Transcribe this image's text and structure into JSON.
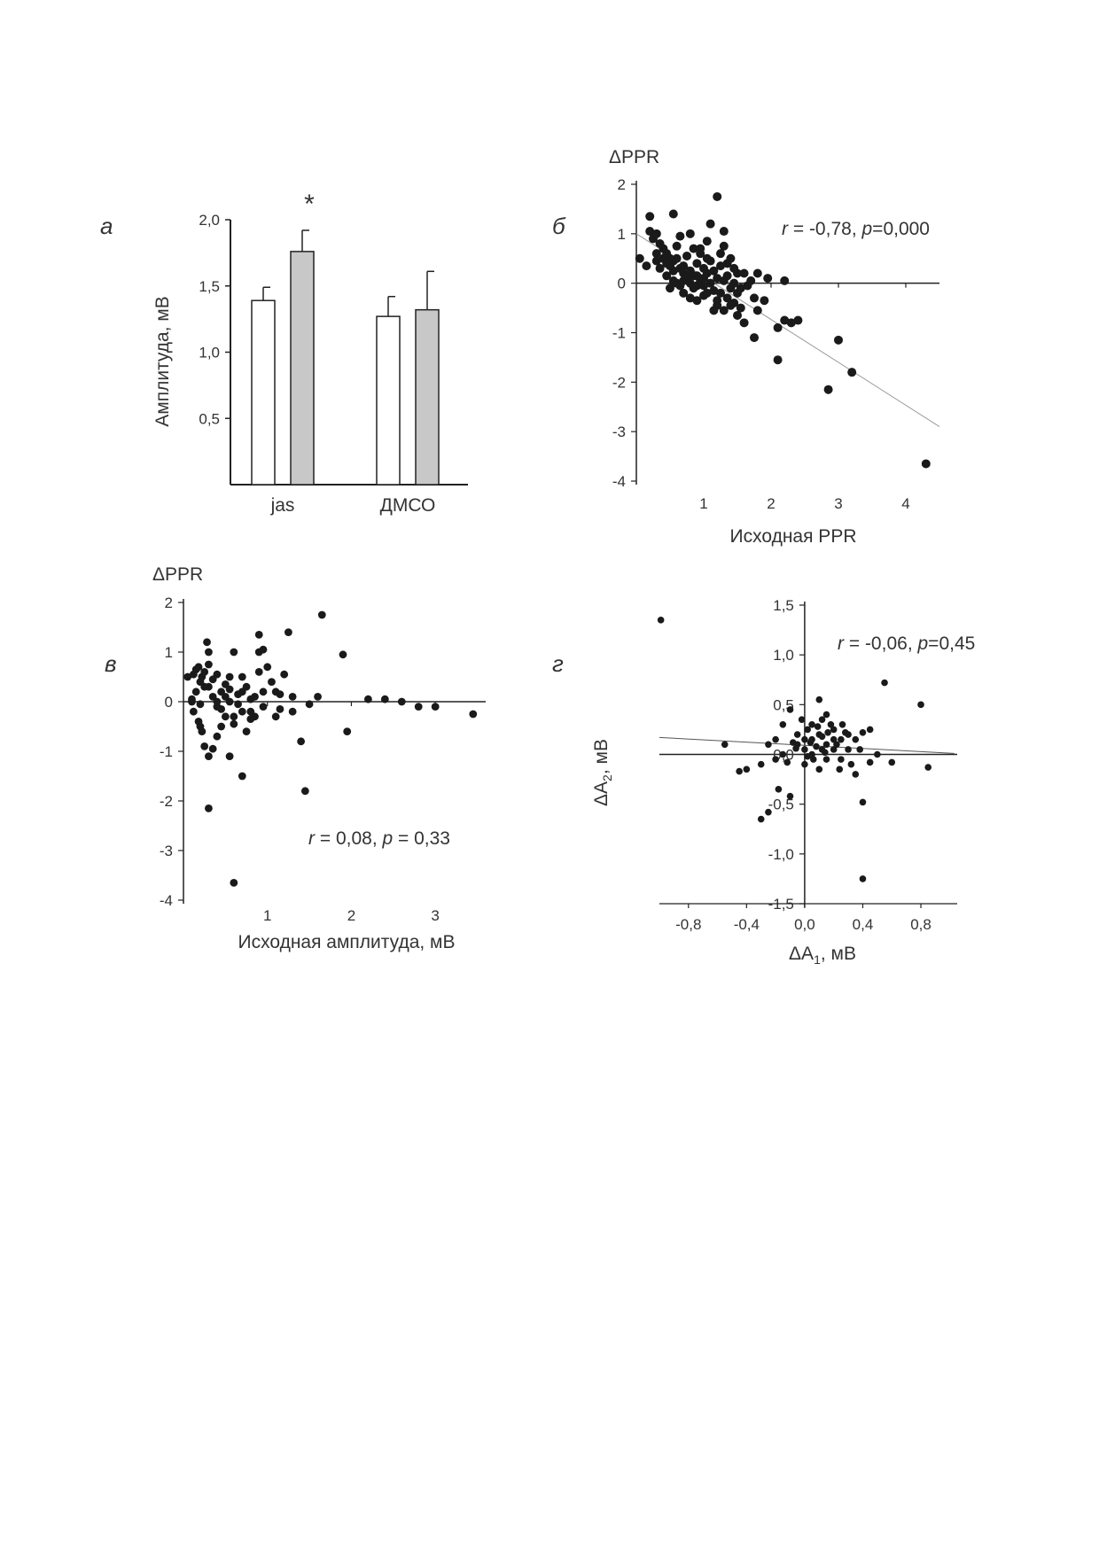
{
  "chart_data": [
    {
      "panel": "а",
      "type": "bar",
      "ylabel": "Амплитуда, мВ",
      "categories": [
        "jas",
        "ДМСО"
      ],
      "series": [
        {
          "color": "#ffffff",
          "values": [
            1.39,
            1.27
          ],
          "errors": [
            0.1,
            0.15
          ]
        },
        {
          "color": "#c8c8c8",
          "values": [
            1.76,
            1.32
          ],
          "errors": [
            0.16,
            0.29
          ]
        }
      ],
      "annotation": "*",
      "ylim": [
        0,
        2.0
      ],
      "yticks": [
        "0,5",
        "1,0",
        "1,5",
        "2,0"
      ],
      "grid": false
    },
    {
      "panel": "б",
      "type": "scatter",
      "ylabel": "ΔPPR",
      "xlabel": "Исходная PPR",
      "stats": {
        "r": "-0,78",
        "p": "0,000"
      },
      "xticks": [
        "1",
        "2",
        "3",
        "4"
      ],
      "yticks": [
        "2",
        "1",
        "0",
        "-1",
        "-2",
        "-3",
        "-4"
      ],
      "xlim": [
        0,
        4.5
      ],
      "ylim": [
        -4,
        2
      ],
      "trendline": [
        [
          0,
          1.0
        ],
        [
          4.5,
          -2.9
        ]
      ],
      "points": [
        [
          0.05,
          0.5
        ],
        [
          0.2,
          1.35
        ],
        [
          0.2,
          1.05
        ],
        [
          0.3,
          1.0
        ],
        [
          0.35,
          0.8
        ],
        [
          0.3,
          0.6
        ],
        [
          0.4,
          0.5
        ],
        [
          0.45,
          0.4
        ],
        [
          0.5,
          0.35
        ],
        [
          0.55,
          0.45
        ],
        [
          0.6,
          0.5
        ],
        [
          0.55,
          0.25
        ],
        [
          0.65,
          0.3
        ],
        [
          0.7,
          0.2
        ],
        [
          0.75,
          0.1
        ],
        [
          0.8,
          0.0
        ],
        [
          0.85,
          -0.1
        ],
        [
          0.9,
          0.15
        ],
        [
          0.95,
          0.05
        ],
        [
          1.0,
          -0.05
        ],
        [
          1.05,
          0.2
        ],
        [
          1.1,
          0.0
        ],
        [
          1.15,
          -0.15
        ],
        [
          1.2,
          0.1
        ],
        [
          1.25,
          -0.2
        ],
        [
          1.3,
          0.05
        ],
        [
          1.35,
          -0.3
        ],
        [
          1.4,
          -0.1
        ],
        [
          0.6,
          0.0
        ],
        [
          0.7,
          -0.2
        ],
        [
          0.8,
          -0.3
        ],
        [
          0.9,
          -0.05
        ],
        [
          1.0,
          0.3
        ],
        [
          1.1,
          0.45
        ],
        [
          0.75,
          0.55
        ],
        [
          0.85,
          0.7
        ],
        [
          0.95,
          0.6
        ],
        [
          1.05,
          0.5
        ],
        [
          0.45,
          0.15
        ],
        [
          0.5,
          -0.1
        ],
        [
          0.65,
          -0.05
        ],
        [
          0.55,
          0.05
        ],
        [
          0.7,
          0.35
        ],
        [
          0.8,
          0.25
        ],
        [
          0.9,
          0.4
        ],
        [
          1.0,
          0.1
        ],
        [
          1.15,
          0.25
        ],
        [
          1.25,
          0.35
        ],
        [
          1.35,
          0.15
        ],
        [
          1.45,
          0.0
        ],
        [
          1.5,
          -0.2
        ],
        [
          1.55,
          -0.1
        ],
        [
          1.6,
          0.2
        ],
        [
          1.65,
          -0.05
        ],
        [
          1.45,
          -0.4
        ],
        [
          1.55,
          -0.5
        ],
        [
          1.5,
          -0.65
        ],
        [
          1.2,
          -0.45
        ],
        [
          1.3,
          -0.55
        ],
        [
          1.6,
          -0.8
        ],
        [
          1.75,
          -1.1
        ],
        [
          1.8,
          -0.55
        ],
        [
          1.9,
          -0.35
        ],
        [
          2.1,
          -0.9
        ],
        [
          2.2,
          -0.75
        ],
        [
          2.3,
          -0.8
        ],
        [
          2.4,
          -0.75
        ],
        [
          2.2,
          0.05
        ],
        [
          2.1,
          -1.55
        ],
        [
          2.85,
          -2.15
        ],
        [
          3.0,
          -1.15
        ],
        [
          3.2,
          -1.8
        ],
        [
          4.3,
          -3.65
        ],
        [
          1.2,
          1.75
        ],
        [
          0.55,
          1.4
        ],
        [
          0.8,
          1.0
        ],
        [
          1.1,
          1.2
        ],
        [
          1.3,
          0.75
        ],
        [
          1.3,
          1.05
        ],
        [
          1.4,
          0.5
        ],
        [
          1.5,
          0.2
        ],
        [
          1.8,
          0.2
        ],
        [
          1.95,
          0.1
        ],
        [
          0.95,
          0.7
        ],
        [
          1.05,
          0.85
        ],
        [
          0.65,
          0.95
        ],
        [
          0.4,
          0.7
        ],
        [
          0.35,
          0.3
        ],
        [
          0.6,
          0.75
        ],
        [
          1.2,
          -0.35
        ],
        [
          1.4,
          -0.45
        ],
        [
          1.0,
          -0.25
        ],
        [
          0.9,
          -0.35
        ],
        [
          1.15,
          -0.55
        ],
        [
          1.7,
          0.05
        ],
        [
          1.75,
          -0.3
        ],
        [
          1.25,
          0.6
        ],
        [
          0.3,
          0.45
        ],
        [
          0.45,
          0.6
        ],
        [
          0.25,
          0.9
        ],
        [
          0.15,
          0.35
        ],
        [
          0.5,
          0.5
        ],
        [
          0.7,
          0.05
        ],
        [
          0.85,
          0.15
        ],
        [
          1.05,
          -0.2
        ],
        [
          1.35,
          0.4
        ],
        [
          1.45,
          0.3
        ]
      ]
    },
    {
      "panel": "в",
      "type": "scatter",
      "ylabel": "ΔPPR",
      "xlabel": "Исходная амплитуда, мВ",
      "stats": {
        "r": "0,08",
        "p": "0,33"
      },
      "xticks": [
        "1",
        "2",
        "3"
      ],
      "yticks": [
        "2",
        "1",
        "0",
        "-1",
        "-2",
        "-3",
        "-4"
      ],
      "xlim": [
        0,
        3.6
      ],
      "ylim": [
        -4,
        2
      ],
      "points": [
        [
          0.05,
          0.5
        ],
        [
          0.12,
          0.55
        ],
        [
          0.18,
          0.7
        ],
        [
          0.22,
          0.5
        ],
        [
          0.28,
          1.2
        ],
        [
          0.3,
          1.0
        ],
        [
          0.25,
          0.6
        ],
        [
          0.2,
          0.4
        ],
        [
          0.15,
          0.2
        ],
        [
          0.1,
          0.0
        ],
        [
          0.12,
          -0.2
        ],
        [
          0.18,
          -0.4
        ],
        [
          0.22,
          -0.6
        ],
        [
          0.25,
          -0.9
        ],
        [
          0.3,
          -1.1
        ],
        [
          0.35,
          -0.95
        ],
        [
          0.4,
          -0.7
        ],
        [
          0.45,
          -0.5
        ],
        [
          0.3,
          0.3
        ],
        [
          0.35,
          0.1
        ],
        [
          0.4,
          -0.1
        ],
        [
          0.45,
          0.2
        ],
        [
          0.5,
          0.35
        ],
        [
          0.55,
          0.0
        ],
        [
          0.6,
          -0.3
        ],
        [
          0.65,
          0.15
        ],
        [
          0.7,
          0.5
        ],
        [
          0.75,
          0.3
        ],
        [
          0.8,
          -0.2
        ],
        [
          0.85,
          0.1
        ],
        [
          0.9,
          0.6
        ],
        [
          0.95,
          -0.1
        ],
        [
          0.6,
          1.0
        ],
        [
          0.7,
          -1.5
        ],
        [
          0.75,
          -0.6
        ],
        [
          0.9,
          1.0
        ],
        [
          0.95,
          1.05
        ],
        [
          1.0,
          0.7
        ],
        [
          1.1,
          0.2
        ],
        [
          1.2,
          0.55
        ],
        [
          1.3,
          0.1
        ],
        [
          1.4,
          -0.8
        ],
        [
          1.45,
          -1.8
        ],
        [
          1.6,
          0.1
        ],
        [
          1.65,
          1.75
        ],
        [
          1.9,
          0.95
        ],
        [
          2.2,
          0.05
        ],
        [
          2.4,
          0.05
        ],
        [
          2.8,
          -0.1
        ],
        [
          3.0,
          -0.1
        ],
        [
          3.45,
          -0.25
        ],
        [
          0.3,
          -2.15
        ],
        [
          0.55,
          -1.1
        ],
        [
          0.6,
          -3.65
        ],
        [
          0.1,
          0.05
        ],
        [
          0.2,
          -0.05
        ],
        [
          0.35,
          0.45
        ],
        [
          0.45,
          -0.15
        ],
        [
          0.5,
          0.1
        ],
        [
          0.55,
          0.25
        ],
        [
          0.65,
          -0.05
        ],
        [
          0.7,
          0.2
        ],
        [
          0.8,
          0.05
        ],
        [
          0.85,
          -0.3
        ],
        [
          1.15,
          0.15
        ],
        [
          1.3,
          -0.2
        ],
        [
          1.5,
          -0.05
        ],
        [
          0.9,
          1.35
        ],
        [
          1.25,
          1.4
        ],
        [
          1.95,
          -0.6
        ],
        [
          2.6,
          0.0
        ],
        [
          0.15,
          0.65
        ],
        [
          0.25,
          0.3
        ],
        [
          0.4,
          0.55
        ],
        [
          0.5,
          -0.3
        ],
        [
          0.6,
          -0.45
        ],
        [
          0.7,
          -0.2
        ],
        [
          0.8,
          -0.35
        ],
        [
          0.2,
          -0.5
        ],
        [
          0.3,
          0.75
        ],
        [
          0.4,
          0.0
        ],
        [
          0.55,
          0.5
        ],
        [
          1.05,
          0.4
        ],
        [
          1.15,
          -0.15
        ],
        [
          0.95,
          0.2
        ],
        [
          1.1,
          -0.3
        ]
      ]
    },
    {
      "panel": "г",
      "type": "scatter",
      "ylabel": "ΔA₂, мВ",
      "xlabel": "ΔA₁, мВ",
      "stats": {
        "r": "-0,06",
        "p": "0,45"
      },
      "xticks": [
        "-0,8",
        "-0,4",
        "0,0",
        "0,4",
        "0,8"
      ],
      "yticks": [
        "1,5",
        "1,0",
        "0,5",
        "0,0",
        "-0,5",
        "-1,0",
        "-1,5"
      ],
      "xlim": [
        -1.0,
        1.05
      ],
      "ylim": [
        -1.5,
        1.5
      ],
      "trendline": [
        [
          -1.0,
          0.17
        ],
        [
          1.03,
          0.01
        ]
      ],
      "points": [
        [
          -0.99,
          1.35
        ],
        [
          0.55,
          0.72
        ],
        [
          0.8,
          0.5
        ],
        [
          -0.55,
          0.1
        ],
        [
          -0.45,
          -0.17
        ],
        [
          -0.3,
          -0.65
        ],
        [
          -0.25,
          -0.58
        ],
        [
          -0.18,
          -0.35
        ],
        [
          -0.1,
          -0.42
        ],
        [
          -0.2,
          0.15
        ],
        [
          -0.15,
          0.0
        ],
        [
          -0.1,
          0.45
        ],
        [
          -0.05,
          0.2
        ],
        [
          0.0,
          0.05
        ],
        [
          0.05,
          0.15
        ],
        [
          0.1,
          0.55
        ],
        [
          0.12,
          0.35
        ],
        [
          0.15,
          0.1
        ],
        [
          0.2,
          0.25
        ],
        [
          0.25,
          -0.05
        ],
        [
          0.3,
          0.2
        ],
        [
          0.35,
          0.15
        ],
        [
          0.4,
          0.22
        ],
        [
          0.45,
          -0.08
        ],
        [
          0.6,
          -0.08
        ],
        [
          0.85,
          -0.13
        ],
        [
          0.4,
          -0.48
        ],
        [
          0.4,
          -1.25
        ],
        [
          -0.05,
          0.1
        ],
        [
          0.0,
          -0.1
        ],
        [
          0.05,
          0.3
        ],
        [
          0.1,
          0.2
        ],
        [
          0.15,
          -0.05
        ],
        [
          0.2,
          0.05
        ],
        [
          0.25,
          0.15
        ],
        [
          0.3,
          0.05
        ],
        [
          -0.15,
          0.3
        ],
        [
          -0.2,
          -0.05
        ],
        [
          -0.25,
          0.1
        ],
        [
          -0.3,
          -0.1
        ],
        [
          0.05,
          0.0
        ],
        [
          0.1,
          -0.15
        ],
        [
          0.15,
          0.4
        ],
        [
          0.2,
          0.15
        ],
        [
          -0.08,
          0.12
        ],
        [
          0.02,
          0.25
        ],
        [
          0.08,
          0.08
        ],
        [
          0.12,
          0.18
        ],
        [
          0.18,
          0.3
        ],
        [
          0.22,
          0.1
        ],
        [
          0.28,
          0.22
        ],
        [
          0.32,
          -0.1
        ],
        [
          -0.12,
          -0.08
        ],
        [
          -0.02,
          0.35
        ],
        [
          0.06,
          -0.05
        ],
        [
          0.14,
          0.02
        ],
        [
          0.24,
          -0.15
        ],
        [
          0.38,
          0.05
        ],
        [
          0.45,
          0.25
        ],
        [
          -0.4,
          -0.15
        ],
        [
          0.5,
          0.0
        ],
        [
          0.0,
          0.15
        ],
        [
          0.04,
          0.12
        ],
        [
          0.09,
          0.28
        ],
        [
          0.16,
          0.22
        ],
        [
          0.26,
          0.3
        ],
        [
          -0.06,
          0.06
        ],
        [
          0.02,
          -0.02
        ],
        [
          0.12,
          0.05
        ],
        [
          0.35,
          -0.2
        ]
      ]
    }
  ]
}
